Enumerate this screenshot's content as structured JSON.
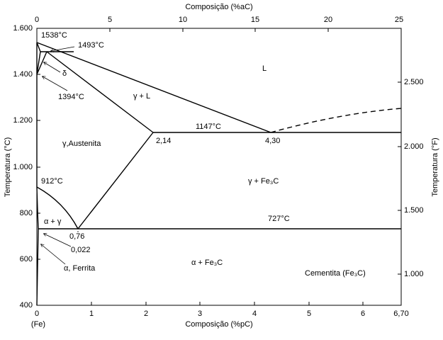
{
  "top_axis": {
    "title": "Composição (%aC)",
    "ticks": [
      "0",
      "5",
      "10",
      "15",
      "20",
      "25"
    ]
  },
  "bottom_axis": {
    "title": "Composição (%pC)",
    "ticks": [
      "0",
      "1",
      "2",
      "3",
      "4",
      "5",
      "6",
      "6,70"
    ],
    "origin_label": "(Fe)"
  },
  "left_axis": {
    "title": "Temperatura (°C)",
    "ticks": [
      "1.600",
      "1.400",
      "1.200",
      "1.000",
      "800",
      "600",
      "400"
    ]
  },
  "right_axis": {
    "title": "Temperatura (°F)",
    "ticks": [
      "2.500",
      "2.000",
      "1.500",
      "1.000"
    ]
  },
  "labels": {
    "t1538": "1538°C",
    "t1493": "1493°C",
    "t1394": "1394°C",
    "delta": "δ",
    "liquid": "L",
    "gamma_l": "γ + L",
    "t1147": "1147°C",
    "c214": "2,14",
    "c430": "4,30",
    "austenite": "γ,Austenita",
    "t912": "912°C",
    "gamma_fe3c": "γ + Fe₃C",
    "alpha_gamma": "α + γ",
    "t727": "727°C",
    "c076": "0,76",
    "c0022": "0,022",
    "ferrite": "α, Ferrita",
    "alpha_fe3c": "α + Fe₃C",
    "cementite": "Cementita (Fe₃C)"
  }
}
